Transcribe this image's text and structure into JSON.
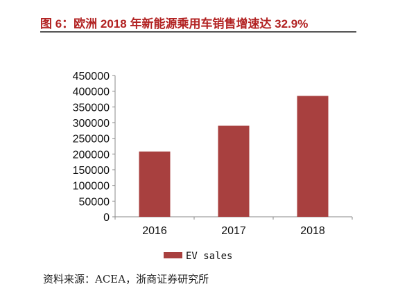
{
  "title": "图 6：欧洲 2018 年新能源乘用车销售增速达 32.9%",
  "source": "资料来源：ACEA，浙商证券研究所",
  "chart_data": {
    "type": "bar",
    "categories": [
      "2016",
      "2017",
      "2018"
    ],
    "series": [
      {
        "name": "EV sales",
        "values": [
          208000,
          290000,
          385000
        ]
      }
    ],
    "ylim": [
      0,
      450000
    ],
    "yticks": [
      0,
      50000,
      100000,
      150000,
      200000,
      250000,
      300000,
      350000,
      400000,
      450000
    ],
    "grid": false,
    "legend": "bottom",
    "bar_color": "#a8403f"
  }
}
